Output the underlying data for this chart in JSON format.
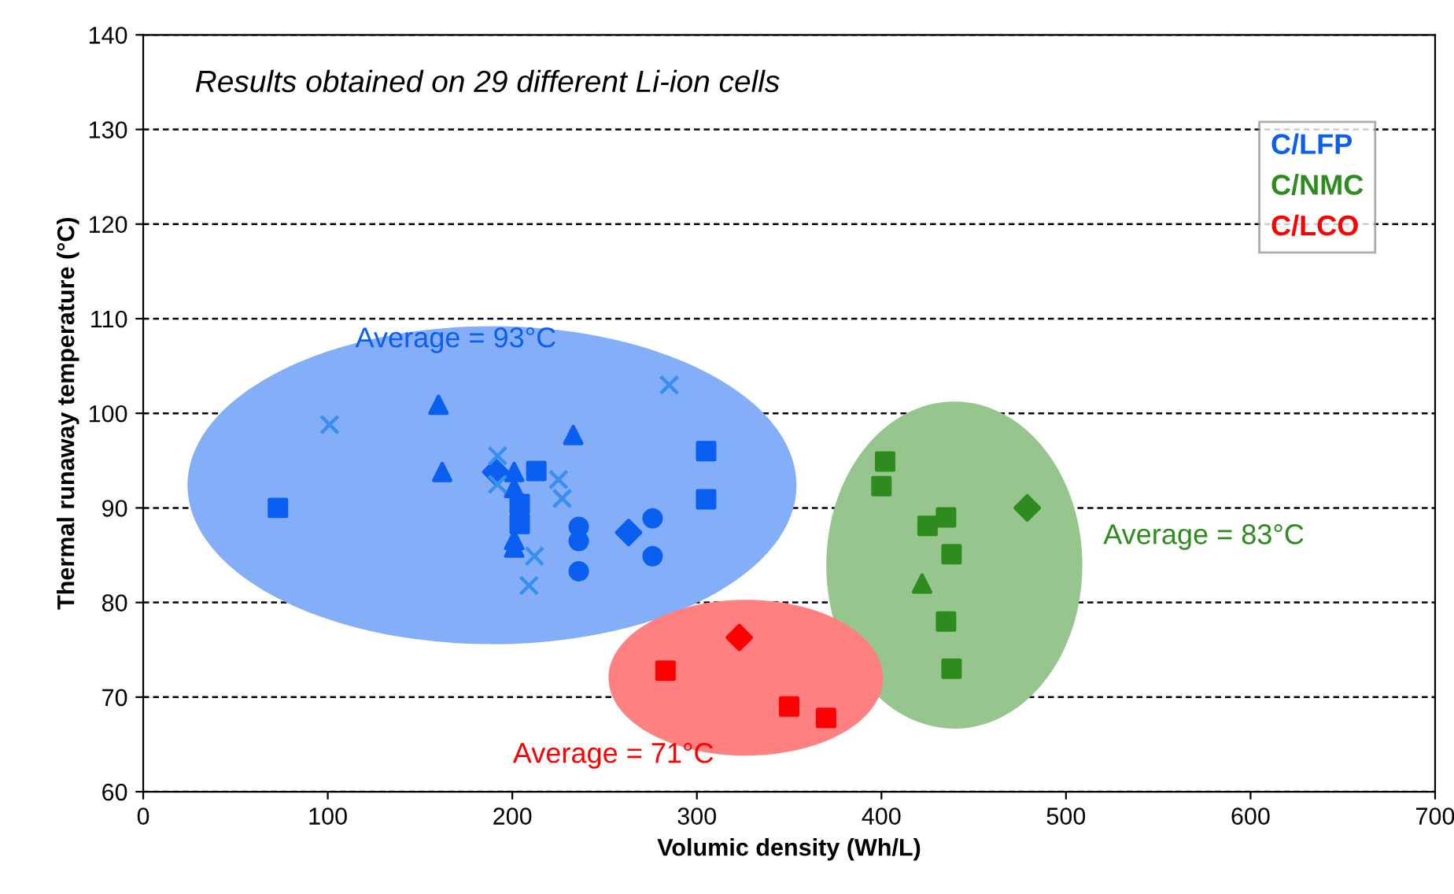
{
  "chart_data": {
    "type": "scatter",
    "xlabel": "Volumic density (Wh/L)",
    "ylabel": "Thermal runaway temperature (°C)",
    "xlim": [
      0,
      700
    ],
    "ylim": [
      60,
      140
    ],
    "xticks": [
      0,
      100,
      200,
      300,
      400,
      500,
      600,
      700
    ],
    "yticks": [
      60,
      70,
      80,
      90,
      100,
      110,
      120,
      130,
      140
    ],
    "grid": "y",
    "legend": "top right",
    "annotations": [
      "Results obtained on 29 different Li-ion cells",
      "Average = 93°C",
      "Average = 83°C",
      "Average = 71°C"
    ],
    "series": [
      {
        "name": "C/LFP",
        "color": "#0a5ef0",
        "marker": "square",
        "x": [
          73,
          305,
          305,
          213,
          204,
          204
        ],
        "values": [
          90.0,
          96.0,
          90.9,
          93.9,
          90.4,
          88.3
        ]
      },
      {
        "color": "#0a5ef0",
        "marker": "triangle",
        "x": [
          160,
          162,
          201,
          201,
          201,
          201,
          233
        ],
        "values": [
          100.9,
          93.8,
          93.8,
          92.1,
          86.6,
          85.8,
          97.7
        ]
      },
      {
        "color": "#0a5ef0",
        "marker": "circle",
        "x": [
          236,
          236,
          236,
          276,
          276
        ],
        "values": [
          88,
          86.5,
          83.3,
          88.9,
          84.9
        ]
      },
      {
        "color": "#0a5ef0",
        "marker": "diamond",
        "x": [
          263,
          191
        ],
        "values": [
          87.4,
          93.8
        ]
      },
      {
        "color": "#3a8ef0",
        "marker": "cross",
        "x": [
          101,
          192,
          192,
          225,
          227,
          212,
          209,
          285
        ],
        "values": [
          98.8,
          95.5,
          92.5,
          93,
          91,
          84.9,
          81.8,
          103
        ]
      },
      {
        "name": "C/NMC",
        "color": "#2e8b1e",
        "marker": "square",
        "x": [
          402,
          400,
          425,
          435,
          438,
          435,
          438
        ],
        "values": [
          94.9,
          92.3,
          88.1,
          89,
          85.1,
          78,
          73
        ]
      },
      {
        "color": "#2e8b1e",
        "marker": "triangle",
        "x": [
          422
        ],
        "values": [
          82
        ]
      },
      {
        "color": "#2e8b1e",
        "marker": "diamond",
        "x": [
          479
        ],
        "values": [
          90
        ]
      },
      {
        "name": "C/LCO",
        "color": "#ff0000",
        "marker": "square",
        "x": [
          283,
          350,
          370
        ],
        "values": [
          72.8,
          69,
          67.8
        ]
      },
      {
        "color": "#ff0000",
        "marker": "diamond",
        "x": [
          323
        ],
        "values": [
          76.3
        ]
      }
    ]
  }
}
